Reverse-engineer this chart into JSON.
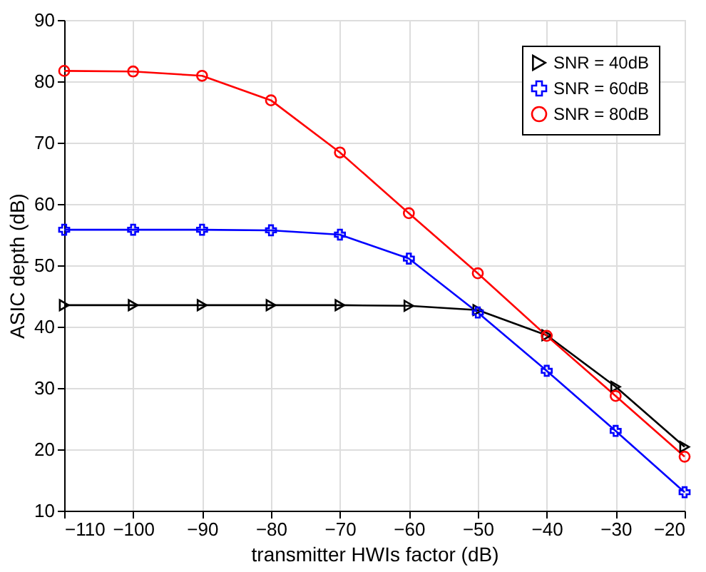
{
  "chart_data": {
    "type": "line",
    "xlabel": "transmitter HWIs factor (dB)",
    "ylabel": "ASIC depth (dB)",
    "x": [
      -110,
      -100,
      -90,
      -80,
      -70,
      -60,
      -50,
      -40,
      -30,
      -20
    ],
    "series": [
      {
        "name": "SNR = 40dB",
        "color": "#000000",
        "marker": "triangle",
        "values": [
          43.5,
          43.5,
          43.5,
          43.5,
          43.5,
          43.4,
          42.7,
          38.6,
          30.2,
          20.4
        ]
      },
      {
        "name": "SNR = 60dB",
        "color": "#0000ff",
        "marker": "cross",
        "values": [
          55.8,
          55.8,
          55.8,
          55.7,
          55.0,
          51.1,
          42.3,
          32.8,
          23.0,
          13.0
        ]
      },
      {
        "name": "SNR = 80dB",
        "color": "#ff0000",
        "marker": "circle",
        "values": [
          81.7,
          81.6,
          80.9,
          76.9,
          68.4,
          58.5,
          48.7,
          38.5,
          28.7,
          18.8
        ]
      }
    ],
    "xlim": [
      -110,
      -20
    ],
    "xticks": [
      -110,
      -100,
      -90,
      -80,
      -70,
      -60,
      -50,
      -40,
      -30,
      -20
    ],
    "ylim": [
      10,
      90
    ],
    "yticks": [
      10,
      20,
      30,
      40,
      50,
      60,
      70,
      80,
      90
    ],
    "grid": true,
    "legend": "top right",
    "line_style": "solid"
  }
}
